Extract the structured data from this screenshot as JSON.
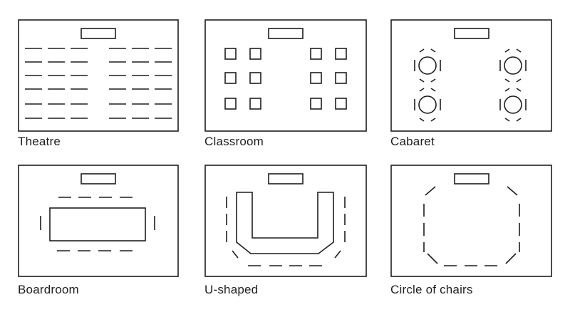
{
  "layouts": [
    {
      "id": "theatre",
      "label": "Theatre"
    },
    {
      "id": "classroom",
      "label": "Classroom"
    },
    {
      "id": "cabaret",
      "label": "Cabaret"
    },
    {
      "id": "boardroom",
      "label": "Boardroom"
    },
    {
      "id": "u-shaped",
      "label": "U-shaped"
    },
    {
      "id": "circle",
      "label": "Circle of chairs"
    }
  ],
  "colors": {
    "line": "#1e1e1e",
    "background": "#ffffff"
  }
}
